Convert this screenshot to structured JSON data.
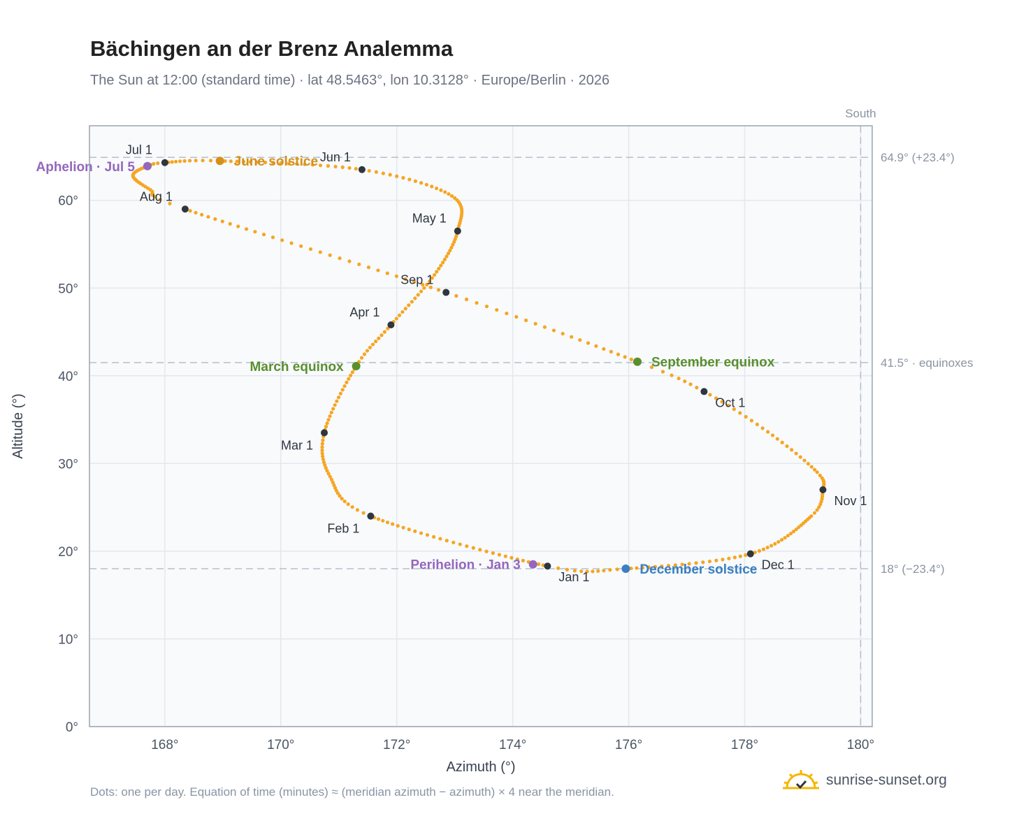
{
  "title": "Bächingen an der Brenz Analemma",
  "subtitle": "The Sun at 12:00 (standard time) · lat 48.5463°, lon 10.3128° · Europe/Berlin · 2026",
  "footnote": "Dots: one per day. Equation of time (minutes) ≈ (meridian azimuth − azimuth) × 4 near the meridian.",
  "brand": {
    "name": "sunrise-sunset.org",
    "logo_icon": "sun-check-icon",
    "color": "#f5b700"
  },
  "chart_data": {
    "type": "scatter",
    "xlabel": "Azimuth (°)",
    "ylabel": "Altitude (°)",
    "xlim": [
      166.7,
      180.2
    ],
    "ylim": [
      0,
      68.5
    ],
    "x_ticks": [
      {
        "value": 168,
        "label": "168°"
      },
      {
        "value": 170,
        "label": "170°"
      },
      {
        "value": 172,
        "label": "172°"
      },
      {
        "value": 174,
        "label": "174°"
      },
      {
        "value": 176,
        "label": "176°"
      },
      {
        "value": 178,
        "label": "178°"
      },
      {
        "value": 180,
        "label": "180°"
      }
    ],
    "y_ticks": [
      {
        "value": 0,
        "label": "0°"
      },
      {
        "value": 10,
        "label": "10°"
      },
      {
        "value": 20,
        "label": "20°"
      },
      {
        "value": 30,
        "label": "30°"
      },
      {
        "value": 40,
        "label": "40°"
      },
      {
        "value": 50,
        "label": "50°"
      },
      {
        "value": 60,
        "label": "60°"
      }
    ],
    "grid": true,
    "dot_color": "#f5a623",
    "month_dot_color": "#2f3640",
    "meridian": {
      "x": 180,
      "label": "South"
    },
    "reference_lines": [
      {
        "y": 64.9,
        "label": "64.9° (+23.4°)"
      },
      {
        "y": 41.5,
        "label": "41.5° · equinoxes"
      },
      {
        "y": 18.0,
        "label": "18° (−23.4°)"
      }
    ],
    "anchors": [
      {
        "doy": 1,
        "az": 174.6,
        "alt": 18.3
      },
      {
        "doy": 32,
        "az": 171.55,
        "alt": 24.0
      },
      {
        "doy": 46,
        "az": 170.85,
        "alt": 28.5
      },
      {
        "doy": 60,
        "az": 170.75,
        "alt": 33.5
      },
      {
        "doy": 79,
        "az": 171.3,
        "alt": 41.1
      },
      {
        "doy": 91,
        "az": 171.9,
        "alt": 45.8
      },
      {
        "doy": 106,
        "az": 172.65,
        "alt": 51.5
      },
      {
        "doy": 121,
        "az": 173.05,
        "alt": 56.5
      },
      {
        "doy": 136,
        "az": 172.95,
        "alt": 60.5
      },
      {
        "doy": 152,
        "az": 171.4,
        "alt": 63.5
      },
      {
        "doy": 172,
        "az": 168.95,
        "alt": 64.5
      },
      {
        "doy": 182,
        "az": 168.0,
        "alt": 64.3
      },
      {
        "doy": 186,
        "az": 167.7,
        "alt": 63.9
      },
      {
        "doy": 195,
        "az": 167.45,
        "alt": 62.8
      },
      {
        "doy": 205,
        "az": 167.75,
        "alt": 61.2
      },
      {
        "doy": 213,
        "az": 168.35,
        "alt": 59.0
      },
      {
        "doy": 244,
        "az": 172.85,
        "alt": 49.5
      },
      {
        "doy": 266,
        "az": 176.15,
        "alt": 41.6
      },
      {
        "doy": 274,
        "az": 177.3,
        "alt": 38.2
      },
      {
        "doy": 285,
        "az": 178.4,
        "alt": 33.6
      },
      {
        "doy": 297,
        "az": 179.25,
        "alt": 29.0
      },
      {
        "doy": 305,
        "az": 179.35,
        "alt": 27.0
      },
      {
        "doy": 315,
        "az": 179.15,
        "alt": 24.0
      },
      {
        "doy": 335,
        "az": 178.1,
        "alt": 19.7
      },
      {
        "doy": 355,
        "az": 175.95,
        "alt": 18.0
      },
      {
        "doy": 366,
        "az": 174.6,
        "alt": 18.3
      }
    ],
    "month_markers": [
      {
        "label": "Jan 1",
        "az": 174.6,
        "alt": 18.3,
        "dx": 16,
        "dy": 22,
        "anchor": "start"
      },
      {
        "label": "Feb 1",
        "az": 171.55,
        "alt": 24.0,
        "dx": -16,
        "dy": 24,
        "anchor": "end"
      },
      {
        "label": "Mar 1",
        "az": 170.75,
        "alt": 33.5,
        "dx": -16,
        "dy": 24,
        "anchor": "end"
      },
      {
        "label": "Apr 1",
        "az": 171.9,
        "alt": 45.8,
        "dx": -16,
        "dy": -12,
        "anchor": "end"
      },
      {
        "label": "May 1",
        "az": 173.05,
        "alt": 56.5,
        "dx": -16,
        "dy": -12,
        "anchor": "end"
      },
      {
        "label": "Jun 1",
        "az": 171.4,
        "alt": 63.5,
        "dx": -16,
        "dy": -12,
        "anchor": "end"
      },
      {
        "label": "Jul 1",
        "az": 168.0,
        "alt": 64.3,
        "dx": -18,
        "dy": -12,
        "anchor": "end"
      },
      {
        "label": "Aug 1",
        "az": 168.35,
        "alt": 59.0,
        "dx": -18,
        "dy": -12,
        "anchor": "end"
      },
      {
        "label": "Sep 1",
        "az": 172.85,
        "alt": 49.5,
        "dx": -18,
        "dy": -12,
        "anchor": "end"
      },
      {
        "label": "Oct 1",
        "az": 177.3,
        "alt": 38.2,
        "dx": 16,
        "dy": 22,
        "anchor": "start"
      },
      {
        "label": "Nov 1",
        "az": 179.35,
        "alt": 27.0,
        "dx": 16,
        "dy": 22,
        "anchor": "start"
      },
      {
        "label": "Dec 1",
        "az": 178.1,
        "alt": 19.7,
        "dx": 16,
        "dy": 22,
        "anchor": "start"
      }
    ],
    "events": [
      {
        "label": "June solstice",
        "az": 168.95,
        "alt": 64.5,
        "color": "#d4901a",
        "side": "right"
      },
      {
        "label": "Aphelion · Jul 5",
        "az": 167.7,
        "alt": 63.9,
        "color": "#9467bd",
        "side": "left"
      },
      {
        "label": "March equinox",
        "az": 171.3,
        "alt": 41.1,
        "color": "#5a8f2e",
        "side": "left"
      },
      {
        "label": "September equinox",
        "az": 176.15,
        "alt": 41.6,
        "color": "#5a8f2e",
        "side": "right"
      },
      {
        "label": "Perihelion · Jan 3",
        "az": 174.35,
        "alt": 18.5,
        "color": "#9467bd",
        "side": "left"
      },
      {
        "label": "December solstice",
        "az": 175.95,
        "alt": 18.0,
        "color": "#3a7fc1",
        "side": "right"
      }
    ]
  }
}
